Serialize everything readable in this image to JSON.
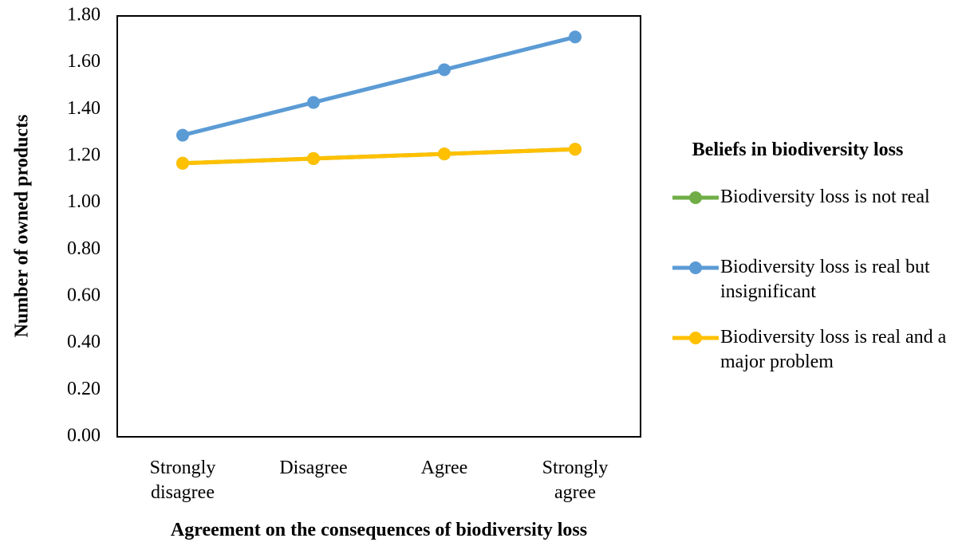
{
  "chart_data": {
    "type": "line",
    "x_label": "Agreement on the consequences of biodiversity loss",
    "y_label": "Number of owned products",
    "categories": [
      "Strongly disagree",
      "Disagree",
      "Agree",
      "Strongly agree"
    ],
    "series": [
      {
        "name": "Biodiversity loss is not real",
        "color": "#70ad47",
        "values": [
          1.17,
          1.19,
          1.21,
          1.23
        ]
      },
      {
        "name": "Biodiversity loss is real but insignificant",
        "color": "#5b9bd5",
        "values": [
          1.29,
          1.43,
          1.57,
          1.71
        ]
      },
      {
        "name": "Biodiversity loss is real and a major problem",
        "color": "#ffc000",
        "values": [
          1.17,
          1.19,
          1.21,
          1.23
        ]
      }
    ],
    "ylim": [
      0,
      1.8
    ],
    "yticks": [
      {
        "value": 0,
        "label": "0.00"
      },
      {
        "value": 0.2,
        "label": "0.20"
      },
      {
        "value": 0.4,
        "label": "0.40"
      },
      {
        "value": 0.6,
        "label": "0.60"
      },
      {
        "value": 0.8,
        "label": "0.80"
      },
      {
        "value": 1,
        "label": "1.00"
      },
      {
        "value": 1.2,
        "label": "1.20"
      },
      {
        "value": 1.4,
        "label": "1.40"
      },
      {
        "value": 1.6,
        "label": "1.60"
      },
      {
        "value": 1.8,
        "label": "1.80"
      }
    ],
    "grid": false,
    "legend": {
      "title": "Beliefs in biodiversity loss",
      "position": "right"
    }
  }
}
